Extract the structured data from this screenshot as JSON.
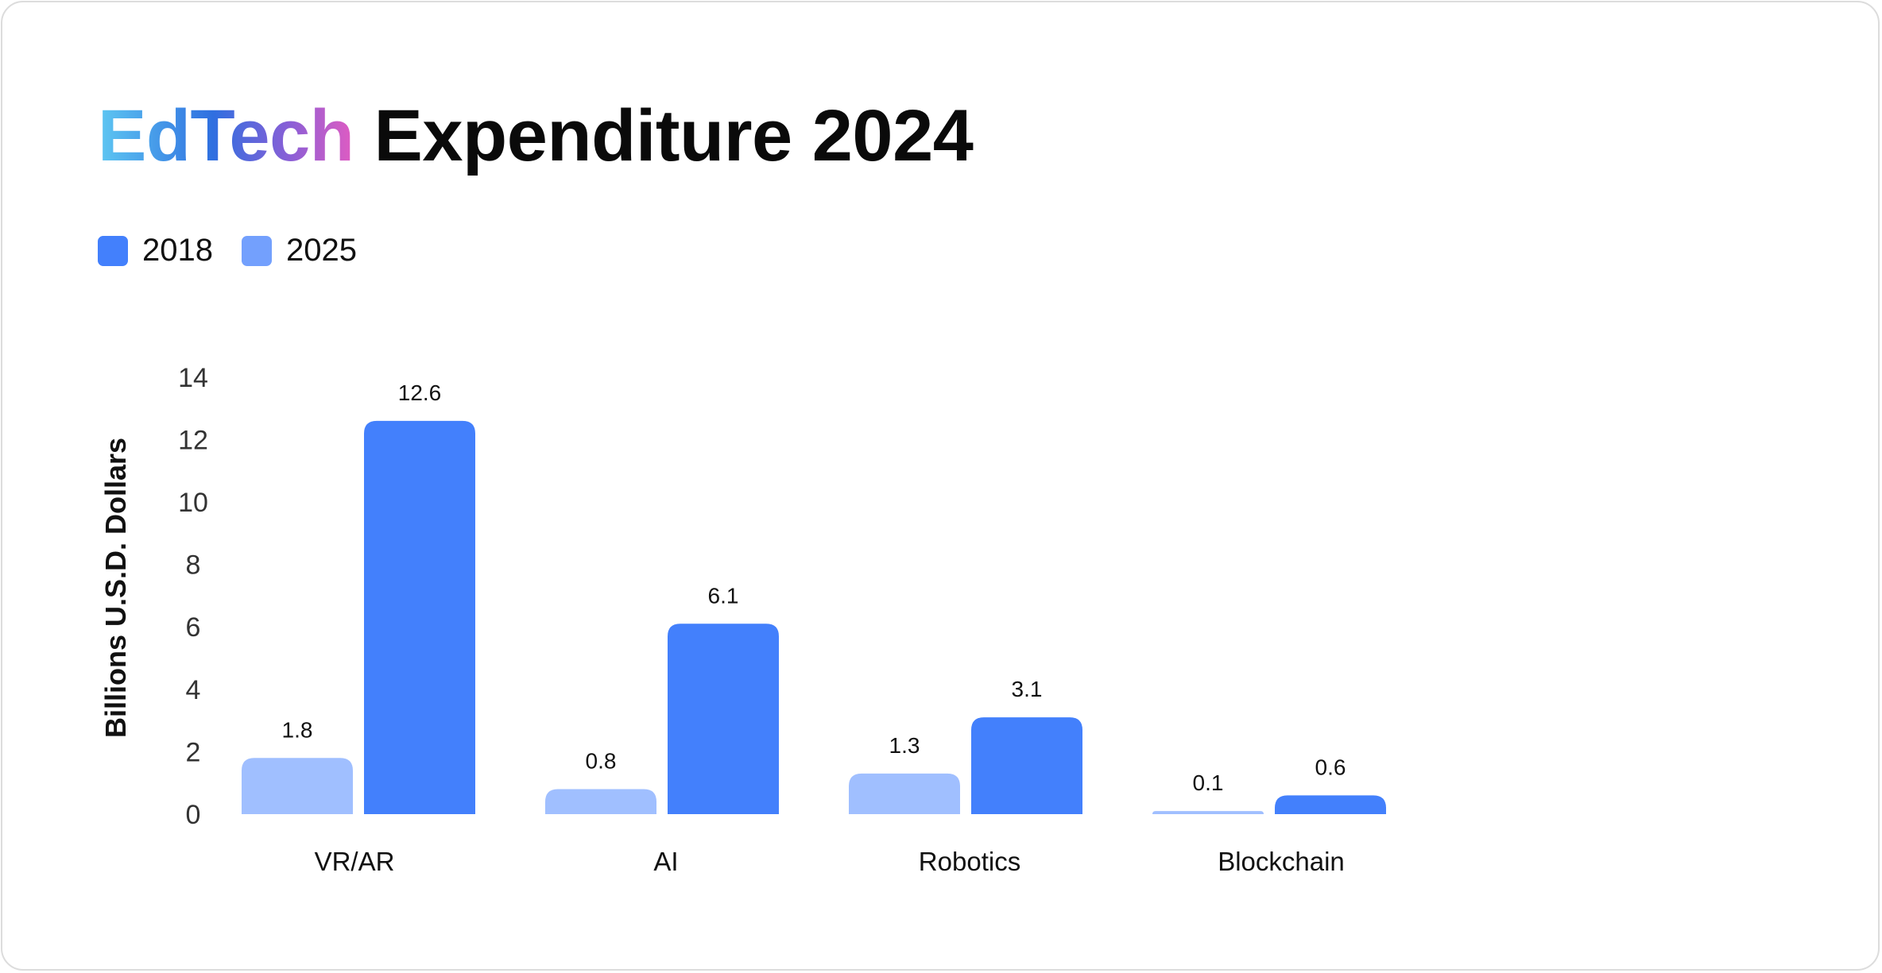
{
  "title": {
    "accent": "EdTech",
    "rest": "Expenditure 2024"
  },
  "colors": {
    "series_2018": "#4380fc",
    "series_2025": "#a0bfff",
    "legend_2025": "#73a0fd"
  },
  "chart_data": {
    "type": "bar",
    "title": "EdTech Expenditure 2024",
    "ylabel": "Billions U.S.D. Dollars",
    "xlabel": "",
    "ylim": [
      0,
      14
    ],
    "yticks": [
      0,
      2,
      4,
      6,
      8,
      10,
      12,
      14
    ],
    "grid": false,
    "legend_position": "top-left",
    "categories": [
      "VR/AR",
      "AI",
      "Robotics",
      "Blockchain"
    ],
    "series": [
      {
        "name": "2025",
        "values": [
          1.8,
          0.8,
          1.3,
          0.1
        ]
      },
      {
        "name": "2018",
        "values": [
          12.6,
          6.1,
          3.1,
          0.6
        ]
      }
    ],
    "legend": [
      "2018",
      "2025"
    ]
  }
}
